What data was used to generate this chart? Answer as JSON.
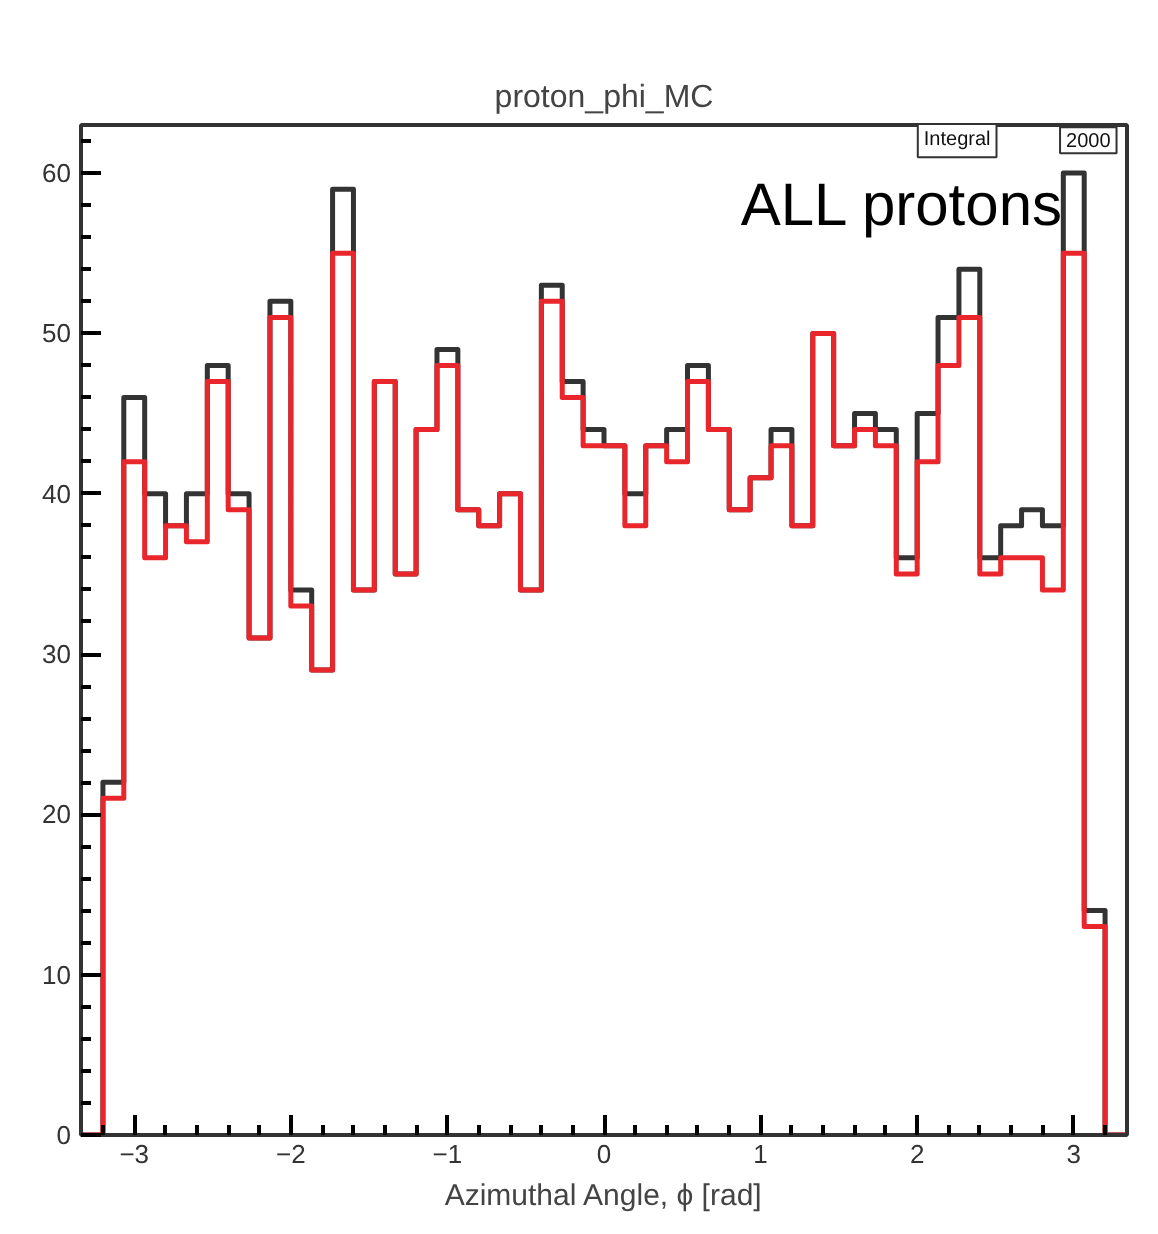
{
  "chart_data": {
    "type": "histogram",
    "title": "proton_phi_MC",
    "xlabel": "Azimuthal Angle, ϕ [rad]",
    "bins": [
      -3.3333,
      -3.2,
      -3.0667,
      -2.9333,
      -2.8,
      -2.6667,
      -2.5333,
      -2.4,
      -2.2667,
      -2.1333,
      -2.0,
      -1.8667,
      -1.7333,
      -1.6,
      -1.4667,
      -1.3333,
      -1.2,
      -1.0667,
      -0.9333,
      -0.8,
      -0.6667,
      -0.5333,
      -0.4,
      -0.2667,
      -0.1333,
      0.0,
      0.1333,
      0.2667,
      0.4,
      0.5333,
      0.6667,
      0.8,
      0.9333,
      1.0667,
      1.2,
      1.3333,
      1.4667,
      1.6,
      1.7333,
      1.8667,
      2.0,
      2.1333,
      2.2667,
      2.4,
      2.5333,
      2.6667,
      2.8,
      2.9333,
      3.0667,
      3.2,
      3.3333
    ],
    "series": [
      {
        "color": "#333333",
        "values": [
          0,
          22,
          46,
          40,
          38,
          40,
          48,
          40,
          31,
          52,
          34,
          29,
          59,
          34,
          47,
          35,
          44,
          49,
          39,
          38,
          40,
          34,
          53,
          47,
          44,
          43,
          40,
          43,
          44,
          48,
          44,
          39,
          41,
          44,
          38,
          50,
          43,
          45,
          44,
          36,
          45,
          51,
          54,
          36,
          38,
          39,
          38,
          60,
          14,
          0
        ]
      },
      {
        "color": "#e8262b",
        "values": [
          0,
          21,
          42,
          36,
          38,
          37,
          47,
          39,
          31,
          51,
          33,
          29,
          55,
          34,
          47,
          35,
          44,
          48,
          39,
          38,
          40,
          34,
          52,
          46,
          43,
          43,
          38,
          43,
          42,
          47,
          44,
          39,
          41,
          43,
          38,
          50,
          43,
          44,
          43,
          35,
          42,
          48,
          51,
          35,
          36,
          36,
          34,
          55,
          13,
          0
        ]
      }
    ],
    "xlim": [
      -3.34,
      3.34
    ],
    "ylim": [
      0,
      63
    ],
    "xticks": [
      {
        "value": -3,
        "label": "−3"
      },
      {
        "value": -2,
        "label": "−2"
      },
      {
        "value": -1,
        "label": "−1"
      },
      0,
      1,
      2,
      3
    ],
    "yticks": [
      0,
      10,
      20,
      30,
      40,
      50,
      60
    ],
    "grid": false,
    "annotations": [
      "ALL protons",
      "Integral",
      "2000"
    ]
  }
}
